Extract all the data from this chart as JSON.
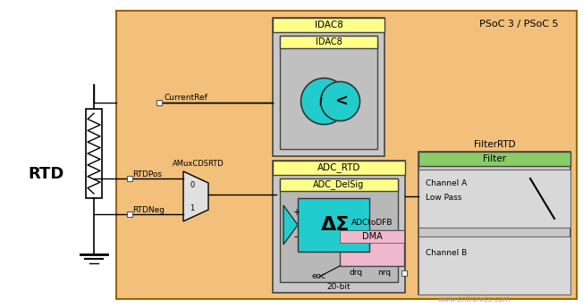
{
  "page_bg": "#ffffff",
  "psoc_bg": "#f2c07a",
  "gray_box": "#c8c8c8",
  "gray_inner": "#b8b8b8",
  "yellow_label": "#ffff88",
  "green_label": "#88cc66",
  "pink_label": "#f0aabb",
  "cyan_color": "#22cccc",
  "light_gray": "#c8c8c8",
  "line_color": "#000000",
  "rtd_label": "RTD",
  "psoc_label": "PSoC 3 / PSoC 5",
  "idac8_title": "IDAC8",
  "idac8_label": "IDAC8",
  "adc_title": "ADC_RTD",
  "adc_label": "ADC_DelSig",
  "filter_title": "FilterRTD",
  "filter_label": "Filter",
  "amux_label": "AMuxCDSRTD",
  "dma_label": "DMA",
  "current_ref": "CurrentRef",
  "rtd_pos": "RTDPos",
  "rtd_neg": "RTDNeg",
  "adc_to_dfb": "ADCtoDFB",
  "eoc_label": "eoc",
  "drq_label": "drq",
  "nrq_label": "nrq",
  "bit_label": "20-bit",
  "ch_a": "Channel A",
  "low_pass": "Low Pass",
  "ch_b": "Channel B",
  "watermark": "www.cntronics.com"
}
